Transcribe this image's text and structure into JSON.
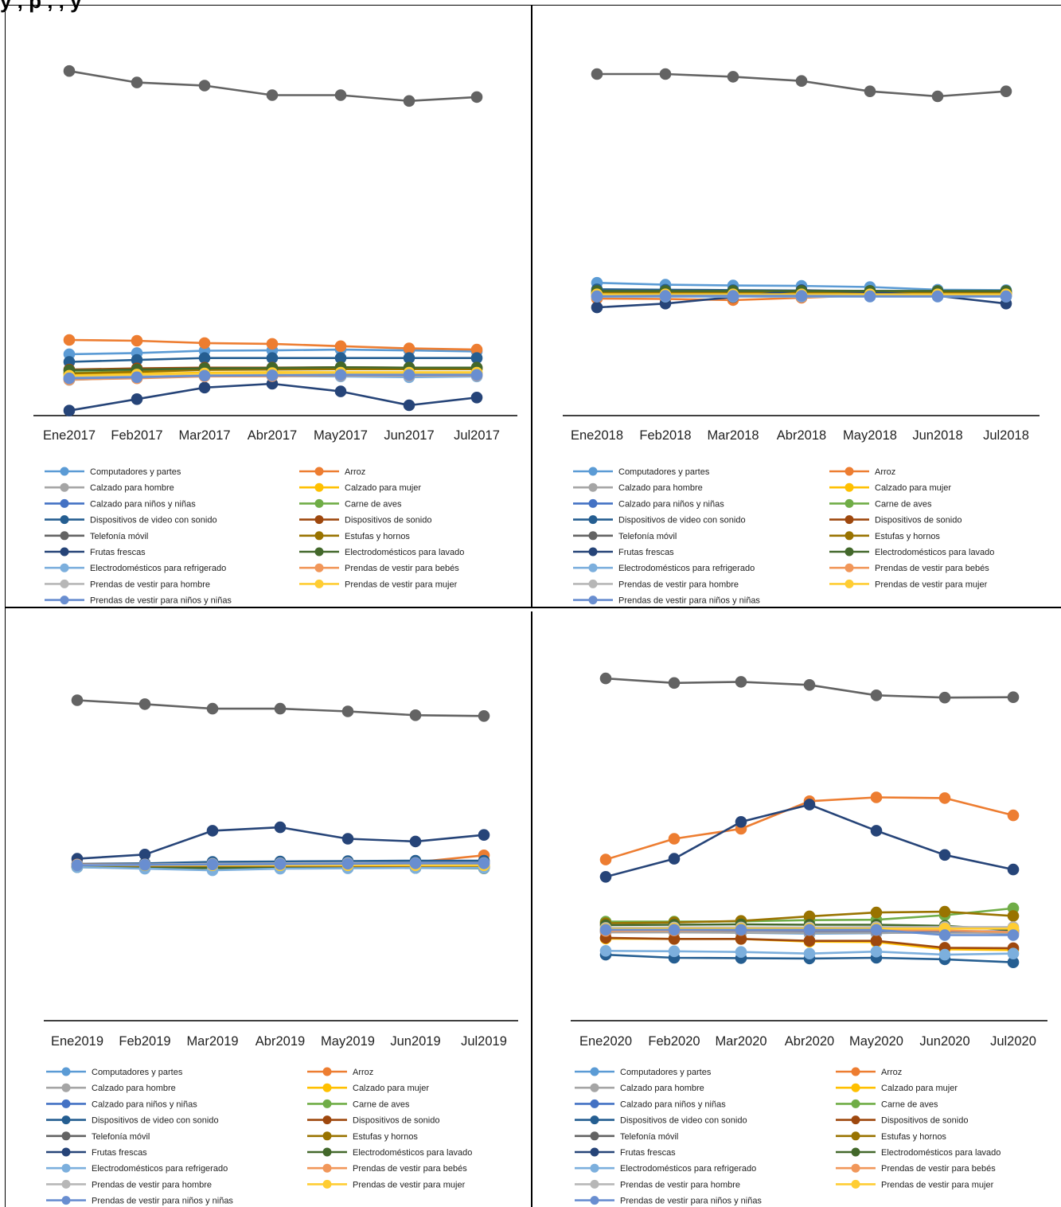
{
  "header": {
    "text": "y , p                  , , y"
  },
  "legend_labels": [
    "Computadores y partes",
    "Arroz",
    "Calzado para hombre",
    "Calzado para mujer",
    "Calzado para niños y niñas",
    "Carne de aves",
    "Dispositivos de video con sonido",
    "Dispositivos de sonido",
    "Telefonía móvil",
    "Estufas y hornos",
    "Frutas frescas",
    "Electrodomésticos para lavado",
    "Electrodomésticos para refrigerado",
    "Prendas de vestir para bebés",
    "Prendas de vestir para hombre",
    "Prendas de vestir para mujer",
    "Prendas de vestir para niños y niñas"
  ],
  "series_colors": [
    "#5b9bd5",
    "#ed7d31",
    "#a5a5a5",
    "#ffc000",
    "#4472c4",
    "#70ad47",
    "#255e91",
    "#9e480e",
    "#636363",
    "#997300",
    "#264478",
    "#43682b",
    "#7cafdd",
    "#f1975a",
    "#b7b7b7",
    "#ffcd33",
    "#698ed0"
  ],
  "chart_data": [
    {
      "type": "line",
      "categories": [
        "Ene2017",
        "Feb2017",
        "Mar2017",
        "Abr2017",
        "May2017",
        "Jun2017",
        "Jul2017"
      ],
      "ylim": [
        0,
        100
      ],
      "series": [
        {
          "name": "Computadores y partes",
          "values": [
            16.0,
            16.3,
            16.9,
            17.0,
            17.2,
            17.0,
            16.7
          ]
        },
        {
          "name": "Arroz",
          "values": [
            19.7,
            19.5,
            18.9,
            18.7,
            18.1,
            17.5,
            17.2
          ]
        },
        {
          "name": "Calzado para hombre",
          "values": [
            9.3,
            9.9,
            10.3,
            10.3,
            10.5,
            10.5,
            10.5
          ]
        },
        {
          "name": "Calzado para mujer",
          "values": [
            10.6,
            10.9,
            11.2,
            11.3,
            11.3,
            11.3,
            11.3
          ]
        },
        {
          "name": "Calzado para niños y niñas",
          "values": [
            9.6,
            10.0,
            10.6,
            10.6,
            10.9,
            10.8,
            10.8
          ]
        },
        {
          "name": "Carne de aves",
          "values": [
            11.2,
            11.5,
            12.0,
            12.1,
            12.3,
            12.3,
            12.3
          ]
        },
        {
          "name": "Dispositivos de video con sonido",
          "values": [
            14.0,
            14.5,
            15.0,
            15.0,
            15.0,
            15.0,
            15.0
          ]
        },
        {
          "name": "Dispositivos de sonido",
          "values": [
            12.0,
            12.3,
            12.5,
            12.5,
            12.6,
            12.5,
            12.5
          ]
        },
        {
          "name": "Telefonía móvil",
          "values": [
            89.8,
            86.8,
            86.0,
            83.5,
            83.5,
            82.0,
            83.0
          ]
        },
        {
          "name": "Estufas y hornos",
          "values": [
            11.0,
            11.4,
            11.9,
            12.0,
            12.1,
            12.1,
            12.1
          ]
        },
        {
          "name": "Frutas frescas",
          "values": [
            1.3,
            4.3,
            7.3,
            8.3,
            6.3,
            2.7,
            4.7
          ]
        },
        {
          "name": "Electrodomésticos para lavado",
          "values": [
            11.8,
            12.0,
            12.3,
            12.4,
            12.6,
            12.5,
            12.5
          ]
        },
        {
          "name": "Electrodomésticos para refrigerado",
          "values": [
            10.0,
            10.2,
            10.3,
            10.3,
            10.2,
            10.0,
            10.2
          ]
        },
        {
          "name": "Prendas de vestir para bebés",
          "values": [
            9.4,
            9.7,
            10.2,
            10.3,
            10.5,
            10.5,
            10.5
          ]
        },
        {
          "name": "Prendas de vestir para hombre",
          "values": [
            9.8,
            10.1,
            10.5,
            10.6,
            10.7,
            10.7,
            10.7
          ]
        },
        {
          "name": "Prendas de vestir para mujer",
          "values": [
            10.4,
            10.7,
            11.0,
            11.1,
            11.2,
            11.2,
            11.2
          ]
        },
        {
          "name": "Prendas de vestir para niños y niñas",
          "values": [
            9.7,
            10.0,
            10.4,
            10.5,
            10.6,
            10.6,
            10.6
          ]
        }
      ]
    },
    {
      "type": "line",
      "categories": [
        "Ene2018",
        "Feb2018",
        "Mar2018",
        "Abr2018",
        "May2018",
        "Jun2018",
        "Jul2018"
      ],
      "ylim": [
        0,
        100
      ],
      "series": [
        {
          "name": "Computadores y partes",
          "values": [
            34.6,
            34.1,
            33.9,
            33.8,
            33.5,
            32.8,
            32.7
          ]
        },
        {
          "name": "Arroz",
          "values": [
            30.5,
            30.4,
            30.1,
            30.7,
            31.4,
            31.3,
            31.3
          ]
        },
        {
          "name": "Calzado para hombre",
          "values": [
            31.5,
            31.5,
            31.4,
            31.4,
            31.5,
            31.5,
            31.5
          ]
        },
        {
          "name": "Calzado para mujer",
          "values": [
            31.9,
            31.9,
            31.9,
            31.9,
            31.9,
            31.9,
            31.9
          ]
        },
        {
          "name": "Calzado para niños y niñas",
          "values": [
            31.2,
            31.3,
            31.3,
            31.3,
            31.3,
            31.3,
            31.3
          ]
        },
        {
          "name": "Carne de aves",
          "values": [
            32.1,
            32.1,
            32.1,
            32.1,
            32.1,
            32.1,
            32.1
          ]
        },
        {
          "name": "Dispositivos de video con sonido",
          "values": [
            32.9,
            32.8,
            32.7,
            32.6,
            32.5,
            32.4,
            32.3
          ]
        },
        {
          "name": "Dispositivos de sonido",
          "values": [
            31.7,
            31.7,
            31.7,
            31.7,
            31.7,
            31.7,
            31.7
          ]
        },
        {
          "name": "Telefonía móvil",
          "values": [
            89.0,
            89.0,
            88.3,
            87.2,
            84.5,
            83.2,
            84.5
          ]
        },
        {
          "name": "Estufas y hornos",
          "values": [
            32.0,
            32.0,
            32.0,
            32.0,
            32.0,
            32.0,
            32.0
          ]
        },
        {
          "name": "Frutas frescas",
          "values": [
            28.2,
            29.2,
            30.9,
            32.7,
            32.2,
            31.2,
            29.2
          ]
        },
        {
          "name": "Electrodomésticos para lavado",
          "values": [
            32.5,
            32.5,
            32.5,
            32.5,
            32.5,
            32.5,
            32.5
          ]
        },
        {
          "name": "Electrodomésticos para refrigerado",
          "values": [
            31.0,
            31.0,
            31.0,
            31.0,
            31.0,
            31.0,
            31.0
          ]
        },
        {
          "name": "Prendas de vestir para bebés",
          "values": [
            31.3,
            31.3,
            31.3,
            31.3,
            31.3,
            31.3,
            31.3
          ]
        },
        {
          "name": "Prendas de vestir para hombre",
          "values": [
            31.4,
            31.4,
            31.4,
            31.4,
            31.4,
            31.4,
            31.4
          ]
        },
        {
          "name": "Prendas de vestir para mujer",
          "values": [
            31.6,
            31.6,
            31.6,
            31.6,
            31.6,
            31.6,
            31.6
          ]
        },
        {
          "name": "Prendas de vestir para niños y niñas",
          "values": [
            31.1,
            31.2,
            31.2,
            31.2,
            31.1,
            31.1,
            31.1
          ]
        }
      ]
    },
    {
      "type": "line",
      "categories": [
        "Ene2019",
        "Feb2019",
        "Mar2019",
        "Abr2019",
        "May2019",
        "Jun2019",
        "Jul2019"
      ],
      "ylim": [
        0,
        100
      ],
      "series": [
        {
          "name": "Computadores y partes",
          "values": [
            40.5,
            40.3,
            40.3,
            40.5,
            40.7,
            40.9,
            40.9
          ]
        },
        {
          "name": "Arroz",
          "values": [
            40.3,
            40.5,
            40.9,
            41.0,
            41.3,
            41.3,
            43.1
          ]
        },
        {
          "name": "Calzado para hombre",
          "values": [
            40.9,
            41.0,
            41.2,
            41.3,
            41.4,
            41.5,
            41.5
          ]
        },
        {
          "name": "Calzado para mujer",
          "values": [
            40.3,
            40.2,
            40.1,
            40.1,
            40.0,
            40.0,
            39.9
          ]
        },
        {
          "name": "Calzado para niños y niñas",
          "values": [
            40.6,
            40.7,
            40.9,
            41.0,
            41.1,
            41.2,
            41.2
          ]
        },
        {
          "name": "Carne de aves",
          "values": [
            40.1,
            40.0,
            40.0,
            40.0,
            40.0,
            40.0,
            40.0
          ]
        },
        {
          "name": "Dispositivos de video con sonido",
          "values": [
            40.8,
            41.0,
            41.4,
            41.5,
            41.6,
            41.7,
            41.7
          ]
        },
        {
          "name": "Dispositivos de sonido",
          "values": [
            40.2,
            40.1,
            40.1,
            40.1,
            40.1,
            40.1,
            40.0
          ]
        },
        {
          "name": "Telefonía móvil",
          "values": [
            83.5,
            82.5,
            81.3,
            81.3,
            80.6,
            79.6,
            79.4
          ]
        },
        {
          "name": "Estufas y hornos",
          "values": [
            40.4,
            40.4,
            40.4,
            40.4,
            40.4,
            40.4,
            40.3
          ]
        },
        {
          "name": "Frutas frescas",
          "values": [
            42.2,
            43.3,
            49.5,
            50.4,
            47.4,
            46.7,
            48.4
          ]
        },
        {
          "name": "Electrodomésticos para lavado",
          "values": [
            40.0,
            39.8,
            39.8,
            39.8,
            39.8,
            39.8,
            39.7
          ]
        },
        {
          "name": "Electrodomésticos para refrigerado",
          "values": [
            40.0,
            39.6,
            39.2,
            39.6,
            39.7,
            39.8,
            39.8
          ]
        },
        {
          "name": "Prendas de vestir para bebés",
          "values": [
            40.7,
            40.7,
            40.8,
            40.8,
            40.8,
            40.8,
            40.8
          ]
        },
        {
          "name": "Prendas de vestir para hombre",
          "values": [
            40.6,
            40.7,
            40.9,
            41.0,
            41.1,
            41.1,
            41.1
          ]
        },
        {
          "name": "Prendas de vestir para mujer",
          "values": [
            40.5,
            40.5,
            40.5,
            40.5,
            40.5,
            40.5,
            40.5
          ]
        },
        {
          "name": "Prendas de vestir para niños y niñas",
          "values": [
            40.5,
            40.6,
            40.7,
            40.8,
            40.9,
            41.0,
            41.0
          ]
        }
      ]
    },
    {
      "type": "line",
      "categories": [
        "Ene2020",
        "Feb2020",
        "Mar2020",
        "Abr2020",
        "May2020",
        "Jun2020",
        "Jul2020"
      ],
      "ylim": [
        0,
        100
      ],
      "series": [
        {
          "name": "Computadores y partes",
          "values": [
            23.2,
            23.2,
            22.9,
            22.7,
            22.8,
            23.2,
            22.7
          ]
        },
        {
          "name": "Arroz",
          "values": [
            42.0,
            47.4,
            50.0,
            57.2,
            58.2,
            58.0,
            53.5
          ]
        },
        {
          "name": "Calzado para hombre",
          "values": [
            23.0,
            23.0,
            22.9,
            22.9,
            22.9,
            22.9,
            22.9
          ]
        },
        {
          "name": "Calzado para mujer",
          "values": [
            21.4,
            21.3,
            21.3,
            20.6,
            20.5,
            18.6,
            18.4
          ]
        },
        {
          "name": "Calzado para niños y niñas",
          "values": [
            23.5,
            23.5,
            23.5,
            23.4,
            23.4,
            23.3,
            23.3
          ]
        },
        {
          "name": "Carne de aves",
          "values": [
            25.8,
            25.8,
            25.9,
            26.2,
            26.3,
            27.5,
            29.3
          ]
        },
        {
          "name": "Dispositivos de video con sonido",
          "values": [
            17.2,
            16.4,
            16.3,
            16.2,
            16.4,
            16.0,
            15.2
          ]
        },
        {
          "name": "Dispositivos de sonido",
          "values": [
            21.6,
            21.3,
            21.3,
            20.8,
            20.8,
            19.0,
            18.9
          ]
        },
        {
          "name": "Telefonía móvil",
          "values": [
            89.2,
            88.0,
            88.3,
            87.5,
            84.8,
            84.2,
            84.3
          ]
        },
        {
          "name": "Estufas y hornos",
          "values": [
            25.4,
            25.6,
            26.0,
            27.2,
            28.2,
            28.4,
            27.3
          ]
        },
        {
          "name": "Frutas frescas",
          "values": [
            37.5,
            42.2,
            51.8,
            56.3,
            49.5,
            43.2,
            39.4
          ]
        },
        {
          "name": "Electrodomésticos para lavado",
          "values": [
            24.9,
            25.0,
            25.1,
            25.0,
            25.0,
            24.7,
            23.6
          ]
        },
        {
          "name": "Electrodomésticos para refrigerado",
          "values": [
            18.2,
            18.1,
            17.9,
            17.5,
            18.0,
            17.2,
            17.5
          ]
        },
        {
          "name": "Prendas de vestir para bebés",
          "values": [
            23.4,
            23.5,
            23.6,
            23.6,
            23.6,
            23.5,
            23.1
          ]
        },
        {
          "name": "Prendas de vestir para hombre",
          "values": [
            24.2,
            24.3,
            24.3,
            24.3,
            24.4,
            24.4,
            24.4
          ]
        },
        {
          "name": "Prendas de vestir para mujer",
          "values": [
            23.9,
            24.0,
            24.0,
            24.0,
            24.0,
            24.0,
            24.0
          ]
        },
        {
          "name": "Prendas de vestir para niños y niñas",
          "values": [
            23.7,
            23.7,
            23.7,
            23.7,
            23.7,
            22.3,
            22.3
          ]
        }
      ]
    }
  ]
}
